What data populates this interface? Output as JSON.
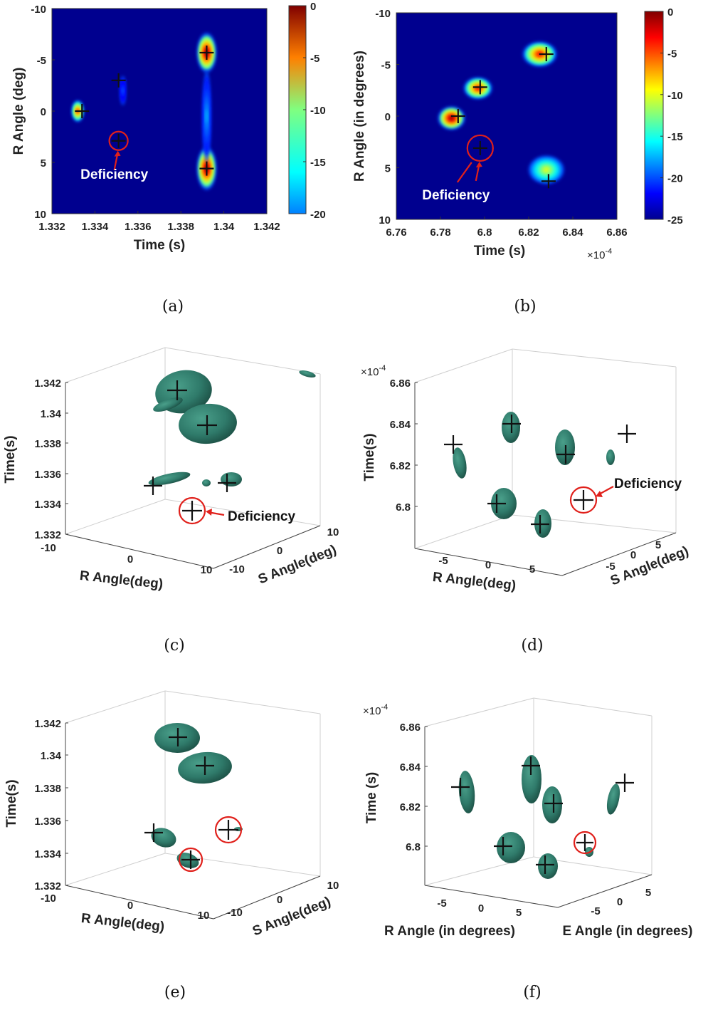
{
  "figure_captions": [
    "(a)",
    "(b)",
    "(c)",
    "(d)",
    "(e)",
    "(f)"
  ],
  "colors": {
    "deficiency_marker": "#e0201b",
    "isosurface": "#2f7a6a",
    "heatmap_background": "#00008f"
  },
  "chart_data": [
    {
      "panel": "a",
      "type": "heatmap",
      "caption": "(a)",
      "xlabel": "Time (s)",
      "ylabel": "R Angle (deg)",
      "xlim": [
        1.332,
        1.342
      ],
      "ylim": [
        -10,
        10
      ],
      "y_reversed": true,
      "xticks": [
        "1.332",
        "1.334",
        "1.336",
        "1.338",
        "1.34",
        "1.342"
      ],
      "yticks": [
        "-10",
        "-5",
        "0",
        "5",
        "10"
      ],
      "colorbar": {
        "range": [
          -20,
          0
        ],
        "ticks": [
          "0",
          "-5",
          "-10",
          "-15",
          "-20"
        ]
      },
      "blobs": [
        {
          "x": 1.3392,
          "y": -5.7,
          "sx": 0.00028,
          "sy": 1.2,
          "peak": 0
        },
        {
          "x": 1.3392,
          "y": 5.6,
          "sx": 0.00028,
          "sy": 1.3,
          "peak": 0
        },
        {
          "x": 1.3392,
          "y": 0.5,
          "sx": 0.00012,
          "sy": 2.8,
          "peak": -14
        },
        {
          "x": 1.3332,
          "y": 0.0,
          "sx": 0.00017,
          "sy": 0.65,
          "peak": -3
        },
        {
          "x": 1.3353,
          "y": -2.0,
          "sx": 8e-05,
          "sy": 0.9,
          "peak": -16
        }
      ],
      "markers": [
        {
          "x": 1.3392,
          "y": -5.7
        },
        {
          "x": 1.3392,
          "y": 5.6
        },
        {
          "x": 1.3334,
          "y": 0.0
        },
        {
          "x": 1.3351,
          "y": -3.0
        },
        {
          "x": 1.3351,
          "y": 2.9
        }
      ],
      "deficiency": {
        "x": 1.3351,
        "y": 2.9,
        "label": "Deficiency"
      }
    },
    {
      "panel": "b",
      "type": "heatmap",
      "caption": "(b)",
      "xlabel": "Time (s)",
      "ylabel": "R Angle (in degrees)",
      "x_exponent": "×10",
      "x_exponent_power": "-4",
      "xlim": [
        6.76,
        6.86
      ],
      "ylim": [
        -10,
        10
      ],
      "y_reversed": true,
      "xticks": [
        "6.76",
        "6.78",
        "6.8",
        "6.82",
        "6.84",
        "6.86"
      ],
      "yticks": [
        "-10",
        "-5",
        "0",
        "5",
        "10"
      ],
      "colorbar": {
        "range": [
          -25,
          0
        ],
        "ticks": [
          "0",
          "-5",
          "-10",
          "-15",
          "-20",
          "-25"
        ]
      },
      "blobs": [
        {
          "x": 6.825,
          "y": -6.0,
          "sx": 0.0048,
          "sy": 0.75,
          "peak": -3
        },
        {
          "x": 6.797,
          "y": -2.7,
          "sx": 0.004,
          "sy": 0.65,
          "peak": -3
        },
        {
          "x": 6.785,
          "y": 0.2,
          "sx": 0.0038,
          "sy": 0.7,
          "peak": 0
        },
        {
          "x": 6.828,
          "y": 5.2,
          "sx": 0.005,
          "sy": 0.85,
          "peak": -10
        }
      ],
      "markers": [
        {
          "x": 6.828,
          "y": -6.0
        },
        {
          "x": 6.798,
          "y": -2.8
        },
        {
          "x": 6.788,
          "y": 0.0
        },
        {
          "x": 6.798,
          "y": 3.1
        },
        {
          "x": 6.829,
          "y": 6.3
        }
      ],
      "deficiency": {
        "x": 6.798,
        "y": 3.1,
        "label": "Deficiency"
      }
    },
    {
      "panel": "c",
      "type": "scatter3d",
      "caption": "(c)",
      "zlabel": "Time(s)",
      "xlabel": "R Angle(deg)",
      "ylabel": "S Angle(deg)",
      "zticks": [
        "1.342",
        "1.34",
        "1.338",
        "1.336",
        "1.334",
        "1.332"
      ],
      "xticks": [
        "-10",
        "0",
        "10"
      ],
      "yticks": [
        "-10",
        "0",
        "10"
      ],
      "deficiency_label": "Deficiency"
    },
    {
      "panel": "d",
      "type": "scatter3d",
      "caption": "(d)",
      "zlabel": "Time(s)",
      "xlabel": "R Angle(deg)",
      "ylabel": "S Angle(deg)",
      "z_exponent": "×10",
      "z_exponent_power": "-4",
      "zticks": [
        "6.86",
        "6.84",
        "6.82",
        "6.8"
      ],
      "xticks": [
        "-5",
        "0",
        "5"
      ],
      "yticks": [
        "-5",
        "0",
        "5"
      ],
      "deficiency_label": "Deficiency"
    },
    {
      "panel": "e",
      "type": "scatter3d",
      "caption": "(e)",
      "zlabel": "Time(s)",
      "xlabel": "R Angle(deg)",
      "ylabel": "S Angle(deg)",
      "zticks": [
        "1.342",
        "1.34",
        "1.338",
        "1.336",
        "1.334",
        "1.332"
      ],
      "xticks": [
        "-10",
        "0",
        "10"
      ],
      "yticks": [
        "-10",
        "0",
        "10"
      ]
    },
    {
      "panel": "f",
      "type": "scatter3d",
      "caption": "(f)",
      "zlabel": "Time (s)",
      "xlabel": "R Angle (in degrees)",
      "ylabel": "E Angle (in degrees)",
      "z_exponent": "×10",
      "z_exponent_power": "-4",
      "zticks": [
        "6.86",
        "6.84",
        "6.82",
        "6.8"
      ],
      "xticks": [
        "-5",
        "0",
        "5"
      ],
      "yticks": [
        "-5",
        "0",
        "5"
      ]
    }
  ]
}
